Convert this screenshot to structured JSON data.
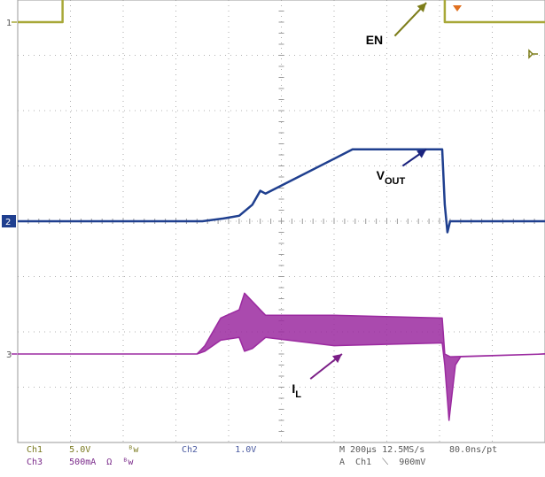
{
  "chart_data": {
    "type": "line",
    "subtype": "oscilloscope-capture",
    "grid": true,
    "divisions": {
      "horizontal": 10,
      "vertical": 8
    },
    "colors": {
      "ch1": "#a8a838",
      "ch2": "#1f3f8f",
      "ch3": "#9b2aa0",
      "grid": "#9a9a9a",
      "annotation_en": "#7d7d1a",
      "annotation_vout": "#1a237e",
      "annotation_il": "#7b1f87"
    },
    "channel_markers": [
      {
        "channel": "1",
        "label": "1",
        "level_div": 7.6
      },
      {
        "channel": "2",
        "label": "2",
        "level_div": 4.0
      },
      {
        "channel": "3",
        "label": "3",
        "level_div": 1.6
      }
    ],
    "series": [
      {
        "name": "EN",
        "channel": "Ch1",
        "points_div": [
          [
            0,
            7.6
          ],
          [
            0.85,
            7.6
          ],
          [
            0.85,
            8.05
          ],
          [
            8.1,
            8.05
          ],
          [
            8.1,
            7.6
          ],
          [
            10,
            7.6
          ]
        ]
      },
      {
        "name": "VOUT",
        "channel": "Ch2",
        "points_div": [
          [
            0,
            4.0
          ],
          [
            3.5,
            4.0
          ],
          [
            3.9,
            4.05
          ],
          [
            4.2,
            4.1
          ],
          [
            4.45,
            4.3
          ],
          [
            4.6,
            4.55
          ],
          [
            4.7,
            4.5
          ],
          [
            6.35,
            5.3
          ],
          [
            8.05,
            5.3
          ],
          [
            8.1,
            4.3
          ],
          [
            8.15,
            3.8
          ],
          [
            8.2,
            4.0
          ],
          [
            10,
            4.0
          ]
        ]
      },
      {
        "name": "IL",
        "channel": "Ch3",
        "envelope_div": {
          "upper": [
            [
              0,
              1.6
            ],
            [
              3.4,
              1.6
            ],
            [
              3.55,
              1.75
            ],
            [
              3.85,
              2.25
            ],
            [
              4.2,
              2.4
            ],
            [
              4.3,
              2.7
            ],
            [
              4.45,
              2.55
            ],
            [
              4.7,
              2.3
            ],
            [
              6.0,
              2.3
            ],
            [
              8.05,
              2.25
            ],
            [
              8.1,
              1.6
            ],
            [
              8.2,
              1.55
            ],
            [
              10,
              1.6
            ]
          ],
          "lower": [
            [
              0,
              1.6
            ],
            [
              3.4,
              1.6
            ],
            [
              3.55,
              1.65
            ],
            [
              3.85,
              1.85
            ],
            [
              4.2,
              1.9
            ],
            [
              4.3,
              1.65
            ],
            [
              4.45,
              1.7
            ],
            [
              4.7,
              1.9
            ],
            [
              6.0,
              1.75
            ],
            [
              8.05,
              1.8
            ],
            [
              8.1,
              1.4
            ],
            [
              8.18,
              0.4
            ],
            [
              8.3,
              1.4
            ],
            [
              8.4,
              1.55
            ],
            [
              10,
              1.6
            ]
          ]
        }
      }
    ],
    "annotations": [
      {
        "label_main": "EN",
        "label_sub": "",
        "text_div": [
          6.6,
          7.2
        ],
        "arrow_from_div": [
          7.15,
          7.35
        ],
        "arrow_to_div": [
          7.75,
          7.95
        ],
        "color_key": "annotation_en"
      },
      {
        "label_main": "V",
        "label_sub": "OUT",
        "text_div": [
          6.8,
          4.75
        ],
        "arrow_from_div": [
          7.3,
          5.0
        ],
        "arrow_to_div": [
          7.75,
          5.3
        ],
        "color_key": "annotation_vout"
      },
      {
        "label_main": "I",
        "label_sub": "L",
        "text_div": [
          5.2,
          0.9
        ],
        "arrow_from_div": [
          5.55,
          1.15
        ],
        "arrow_to_div": [
          6.15,
          1.6
        ],
        "color_key": "annotation_il"
      }
    ],
    "status_lines": {
      "ch1": "Ch1     5.0V       ᴮw",
      "ch3": "Ch3     500mA  Ω  ᴮw",
      "ch2": "Ch2       1.0V",
      "timebase": "M 200μs 12.5MS/s",
      "sample": "80.0ns/pt",
      "trigger": "A  Ch1  ⟍  900mV"
    }
  }
}
